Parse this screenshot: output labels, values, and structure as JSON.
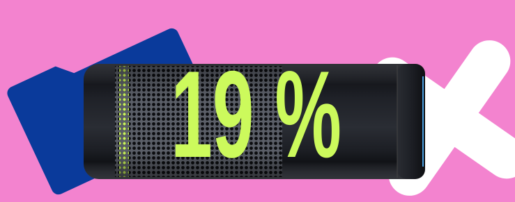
{
  "battery": {
    "label": "19 %"
  }
}
